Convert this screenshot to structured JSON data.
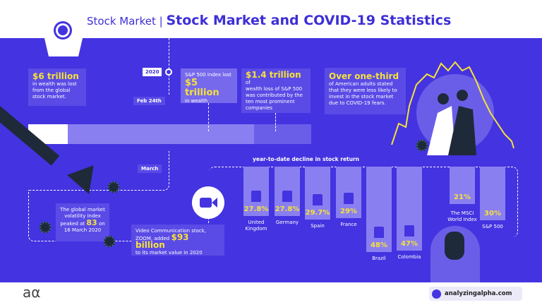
{
  "header": {
    "category": "Stock Market",
    "separator": "|",
    "title": "Stock Market and COVID-19 Statistics"
  },
  "timeline": {
    "year": "2020",
    "feb": "Feb 24th",
    "march": "March"
  },
  "cards": {
    "six": {
      "big": "$6 trillion",
      "text": "in wealth was lost from the global stock market."
    },
    "sp_lost": {
      "pre": "S&P 500 index lost",
      "big": "$5 trillion",
      "post": "in wealth"
    },
    "one_four": {
      "big": "$1.4 trillion",
      "suffix": "of",
      "text": "wealth loss of S&P 500 was contributed by the ten most prominent companies"
    },
    "third": {
      "big": "Over one-third",
      "text": "of American adults stated that they were less likely to invest in the stock market due to COVID-19 fears."
    },
    "volatility": {
      "pre": "The global market volatility index",
      "peak_pre": "peaked at",
      "big": "83",
      "peak_post": "on",
      "date": "16 March 2020"
    },
    "zoom": {
      "pre": "Video Communication stock,",
      "zoom_pre": "ZOOM, added",
      "big": "$93 billion",
      "post": "to its market value in 2020"
    }
  },
  "chart_data": {
    "type": "bar",
    "title": "year-to-date decline in stock return",
    "categories": [
      "United Kingdom",
      "Germany",
      "Spain",
      "France",
      "Brazil",
      "Colombia",
      "The MSCI World Index",
      "S&P 500"
    ],
    "labels": [
      "27.8%",
      "27.8%",
      "29.7%",
      "29%",
      "48%",
      "47%",
      "21%",
      "30%"
    ],
    "values": [
      27.8,
      27.8,
      29.7,
      29,
      48,
      47,
      21,
      30
    ],
    "unit": "%"
  },
  "footer": {
    "logo": "aα",
    "site": "analyzingalpha.com"
  },
  "colors": {
    "background": "#4433e0",
    "accent": "#f5e23a",
    "card": "#5a4be6",
    "bar": "#8a7ff0"
  }
}
